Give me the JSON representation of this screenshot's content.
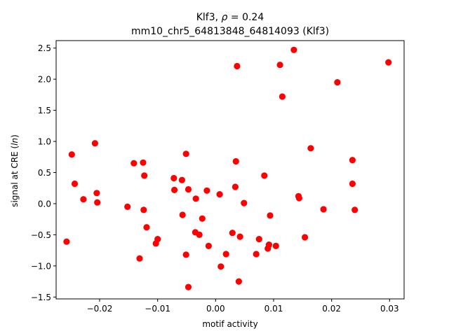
{
  "chart_data": {
    "type": "scatter",
    "title_line1": "Klf3, ρ = 0.24",
    "title_line2": "mm10_chr5_64813848_64814093 (Klf3)",
    "xlabel": "motif activity",
    "ylabel": "signal at CRE (ln)",
    "xlim": [
      -0.0275,
      0.0325
    ],
    "ylim": [
      -1.53,
      2.62
    ],
    "xticks": [
      -0.02,
      -0.01,
      0.0,
      0.01,
      0.02,
      0.03
    ],
    "xtick_labels": [
      "−0.02",
      "−0.01",
      "0.00",
      "0.01",
      "0.02",
      "0.03"
    ],
    "yticks": [
      -1.5,
      -1.0,
      -0.5,
      0.0,
      0.5,
      1.0,
      1.5,
      2.0,
      2.5
    ],
    "ytick_labels": [
      "−1.5",
      "−1.0",
      "−0.5",
      "0.0",
      "0.5",
      "1.0",
      "1.5",
      "2.0",
      "2.5"
    ],
    "grid": false,
    "legend": "none",
    "marker_color": "#ff0000",
    "points": [
      {
        "x": -0.0257,
        "y": -0.61
      },
      {
        "x": -0.0248,
        "y": 0.79
      },
      {
        "x": -0.0243,
        "y": 0.32
      },
      {
        "x": -0.0228,
        "y": 0.07
      },
      {
        "x": -0.0208,
        "y": 0.97
      },
      {
        "x": -0.0205,
        "y": 0.17
      },
      {
        "x": -0.0204,
        "y": 0.02
      },
      {
        "x": -0.0152,
        "y": -0.05
      },
      {
        "x": -0.0141,
        "y": 0.65
      },
      {
        "x": -0.0131,
        "y": -0.88
      },
      {
        "x": -0.0125,
        "y": 0.66
      },
      {
        "x": -0.0124,
        "y": -0.1
      },
      {
        "x": -0.0123,
        "y": 0.45
      },
      {
        "x": -0.0119,
        "y": -0.38
      },
      {
        "x": -0.0103,
        "y": -0.64
      },
      {
        "x": -0.01,
        "y": -0.57
      },
      {
        "x": -0.0072,
        "y": 0.41
      },
      {
        "x": -0.0071,
        "y": 0.22
      },
      {
        "x": -0.0058,
        "y": 0.38
      },
      {
        "x": -0.0057,
        "y": -0.18
      },
      {
        "x": -0.0051,
        "y": 0.8
      },
      {
        "x": -0.0051,
        "y": -0.82
      },
      {
        "x": -0.0047,
        "y": 0.23
      },
      {
        "x": -0.0047,
        "y": -1.34
      },
      {
        "x": -0.0035,
        "y": -0.46
      },
      {
        "x": -0.0034,
        "y": 0.08
      },
      {
        "x": -0.0028,
        "y": -0.5
      },
      {
        "x": -0.0023,
        "y": -0.24
      },
      {
        "x": -0.0015,
        "y": 0.21
      },
      {
        "x": -0.0012,
        "y": -0.68
      },
      {
        "x": 0.0007,
        "y": 0.15
      },
      {
        "x": 0.0009,
        "y": -1.01
      },
      {
        "x": 0.0018,
        "y": -0.81
      },
      {
        "x": 0.0029,
        "y": -0.47
      },
      {
        "x": 0.0034,
        "y": 0.27
      },
      {
        "x": 0.0035,
        "y": 0.68
      },
      {
        "x": 0.0037,
        "y": 2.21
      },
      {
        "x": 0.004,
        "y": -1.25
      },
      {
        "x": 0.0042,
        "y": -0.53
      },
      {
        "x": 0.0049,
        "y": 0.01
      },
      {
        "x": 0.007,
        "y": -0.81
      },
      {
        "x": 0.0075,
        "y": -0.57
      },
      {
        "x": 0.0084,
        "y": 0.45
      },
      {
        "x": 0.009,
        "y": -0.72
      },
      {
        "x": 0.0092,
        "y": -0.66
      },
      {
        "x": 0.0094,
        "y": -0.19
      },
      {
        "x": 0.0104,
        "y": -0.68
      },
      {
        "x": 0.0111,
        "y": 2.23
      },
      {
        "x": 0.0115,
        "y": 1.72
      },
      {
        "x": 0.0135,
        "y": 2.47
      },
      {
        "x": 0.0143,
        "y": 0.12
      },
      {
        "x": 0.0144,
        "y": 0.09
      },
      {
        "x": 0.0154,
        "y": -0.54
      },
      {
        "x": 0.0164,
        "y": 0.89
      },
      {
        "x": 0.0186,
        "y": -0.09
      },
      {
        "x": 0.021,
        "y": 1.95
      },
      {
        "x": 0.0236,
        "y": 0.7
      },
      {
        "x": 0.0236,
        "y": 0.32
      },
      {
        "x": 0.024,
        "y": -0.1
      },
      {
        "x": 0.0298,
        "y": 2.27
      }
    ]
  }
}
